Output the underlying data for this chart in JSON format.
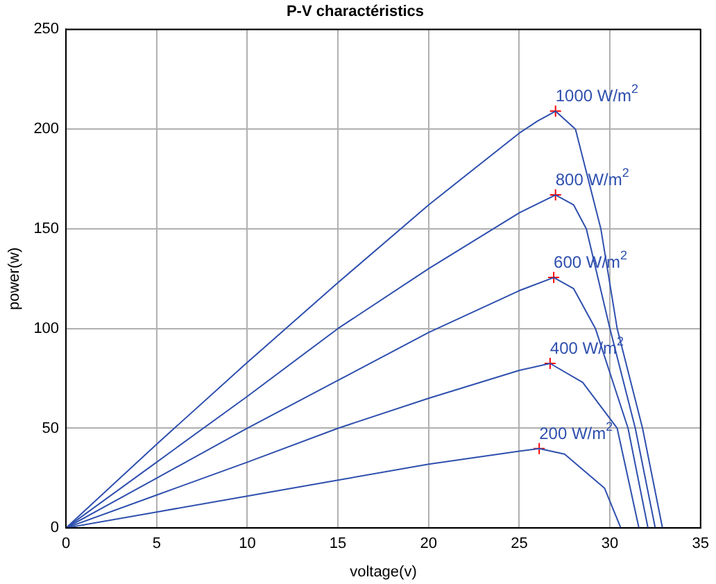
{
  "chart_data": {
    "type": "line",
    "title": "P-V charactéristics",
    "xlabel": "voltage(v)",
    "ylabel": "power(w)",
    "xlim": [
      0,
      35
    ],
    "xticks": [
      0,
      5,
      10,
      15,
      20,
      25,
      30,
      35
    ],
    "ylim": [
      0,
      250
    ],
    "yticks": [
      0,
      50,
      100,
      150,
      200,
      250
    ],
    "grid": true,
    "legend": false,
    "marker": "none",
    "line_style": "solid",
    "series": [
      {
        "name": "1000 W/m$^{2}$",
        "color": "#2e4fae",
        "x": [
          0,
          5,
          10,
          15,
          20,
          25,
          26,
          27,
          28.1,
          29.5,
          30.4,
          31.8,
          32.9
        ],
        "values": [
          0,
          42,
          83,
          123,
          162,
          198,
          204,
          209,
          200,
          150,
          100,
          50,
          0
        ]
      },
      {
        "name": "800 W/m$^{2}$",
        "color": "#2e4fae",
        "x": [
          0,
          5,
          10,
          15,
          20,
          25,
          27,
          28,
          28.7,
          30,
          31.4,
          32.5
        ],
        "values": [
          0,
          33,
          66,
          100,
          130,
          158,
          167,
          162,
          150,
          100,
          50,
          0
        ]
      },
      {
        "name": "600 W/m$^{2}$",
        "color": "#2e4fae",
        "x": [
          0,
          5,
          10,
          15,
          20,
          25,
          26.9,
          28,
          29.2,
          31,
          32.1
        ],
        "values": [
          0,
          25,
          50,
          74,
          98,
          119,
          125.6,
          120,
          100,
          50,
          0
        ]
      },
      {
        "name": "400 W/m$^{2}$",
        "color": "#2e4fae",
        "x": [
          0,
          5,
          10,
          15,
          20,
          25,
          26.7,
          28.5,
          30.4,
          31.6
        ],
        "values": [
          0,
          16.5,
          33,
          50,
          65,
          79,
          82.5,
          73,
          50,
          0
        ]
      },
      {
        "name": "200 W/m$^{2}$",
        "color": "#2e4fae",
        "x": [
          0,
          5,
          10,
          15,
          20,
          25,
          26.1,
          27.5,
          29.7,
          30.6
        ],
        "values": [
          0,
          8,
          16,
          24,
          32,
          38.5,
          39.8,
          37,
          20,
          0
        ]
      },
      {
        "type": "scatter",
        "marker": "cross",
        "color": "#ff0000",
        "x": [
          27,
          27,
          26.9,
          26.7,
          26.1
        ],
        "values": [
          209,
          167,
          125.6,
          82.5,
          39.8
        ]
      }
    ]
  }
}
